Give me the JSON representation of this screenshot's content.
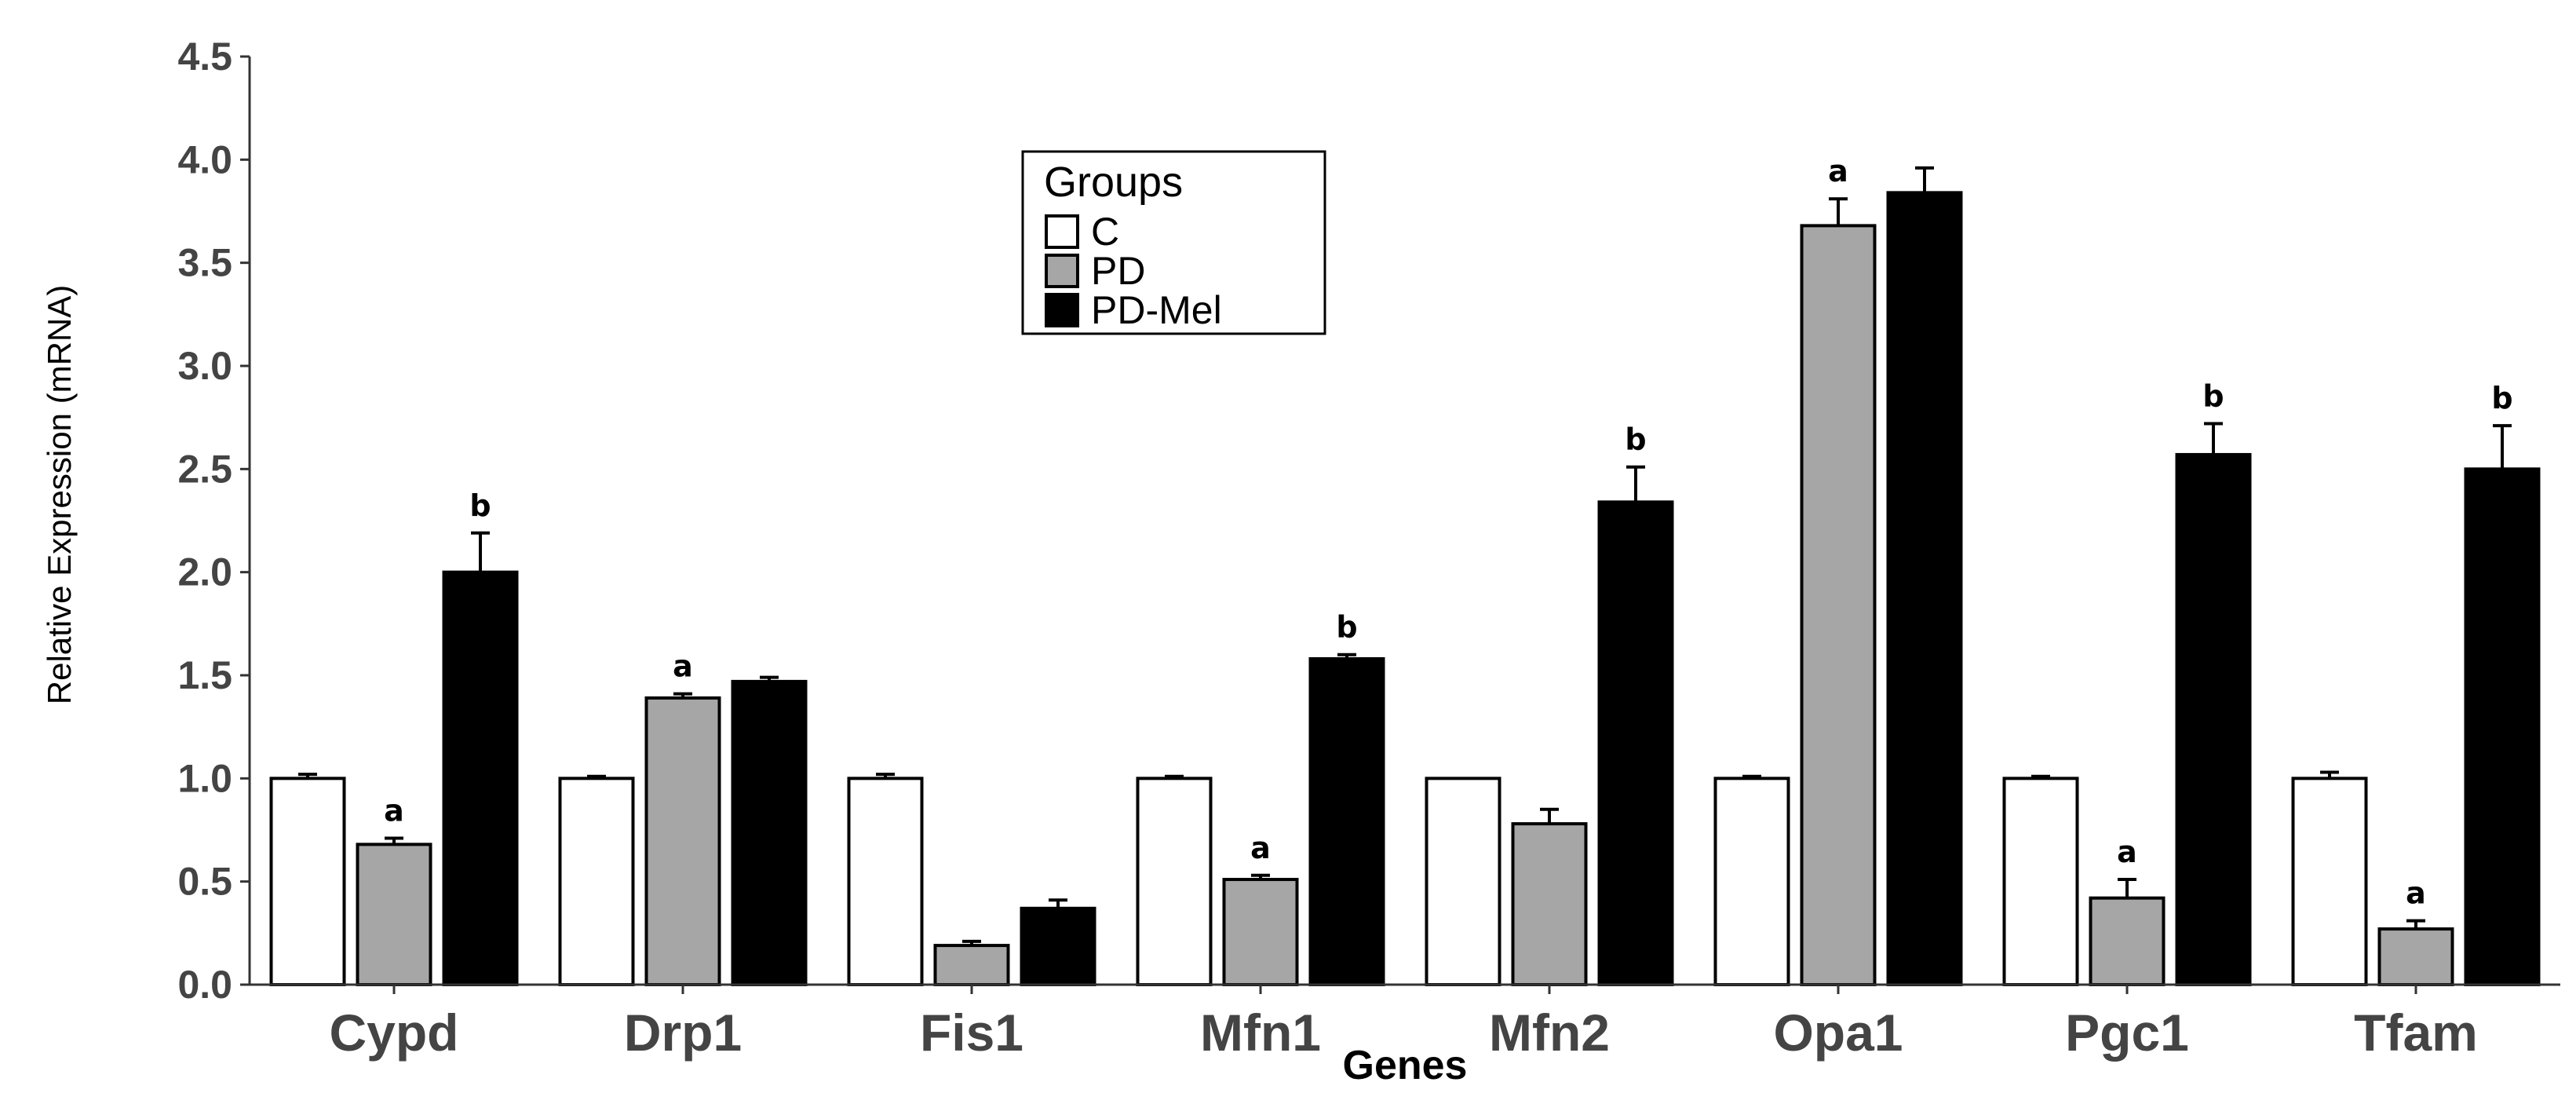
{
  "chart_data": {
    "type": "bar",
    "xlabel": "Genes",
    "ylabel": "Relative Expression (mRNA)",
    "ylim": [
      0,
      4.5
    ],
    "yticks": [
      "0.0",
      "0.5",
      "1.0",
      "1.5",
      "2.0",
      "2.5",
      "3.0",
      "3.5",
      "4.0",
      "4.5"
    ],
    "grid": false,
    "categories": [
      "Cypd",
      "Drp1",
      "Fis1",
      "Mfn1",
      "Mfn2",
      "Opa1",
      "Pgc1",
      "Tfam"
    ],
    "legend": {
      "title": "Groups",
      "position": "top-center"
    },
    "series": [
      {
        "name": "C",
        "color": "#ffffff",
        "values": [
          1.0,
          1.0,
          1.0,
          1.0,
          1.0,
          1.0,
          1.0,
          1.0
        ],
        "errors": [
          0.02,
          0.01,
          0.02,
          0.01,
          0.0,
          0.01,
          0.01,
          0.03
        ],
        "labels": [
          "",
          "",
          "",
          "",
          "",
          "",
          "",
          ""
        ]
      },
      {
        "name": "PD",
        "color": "#a6a6a6",
        "values": [
          0.68,
          1.39,
          0.19,
          0.51,
          0.78,
          3.68,
          0.42,
          0.27
        ],
        "errors": [
          0.03,
          0.02,
          0.02,
          0.02,
          0.07,
          0.13,
          0.09,
          0.04
        ],
        "labels": [
          "a",
          "a",
          "",
          "a",
          "",
          "a",
          "a",
          "a"
        ]
      },
      {
        "name": "PD-Mel",
        "color": "#000000",
        "values": [
          2.0,
          1.47,
          0.37,
          1.58,
          2.34,
          3.84,
          2.57,
          2.5
        ],
        "errors": [
          0.19,
          0.02,
          0.04,
          0.02,
          0.17,
          0.12,
          0.15,
          0.21
        ],
        "labels": [
          "b",
          "",
          "",
          "b",
          "b",
          "",
          "b",
          "b"
        ]
      }
    ]
  }
}
